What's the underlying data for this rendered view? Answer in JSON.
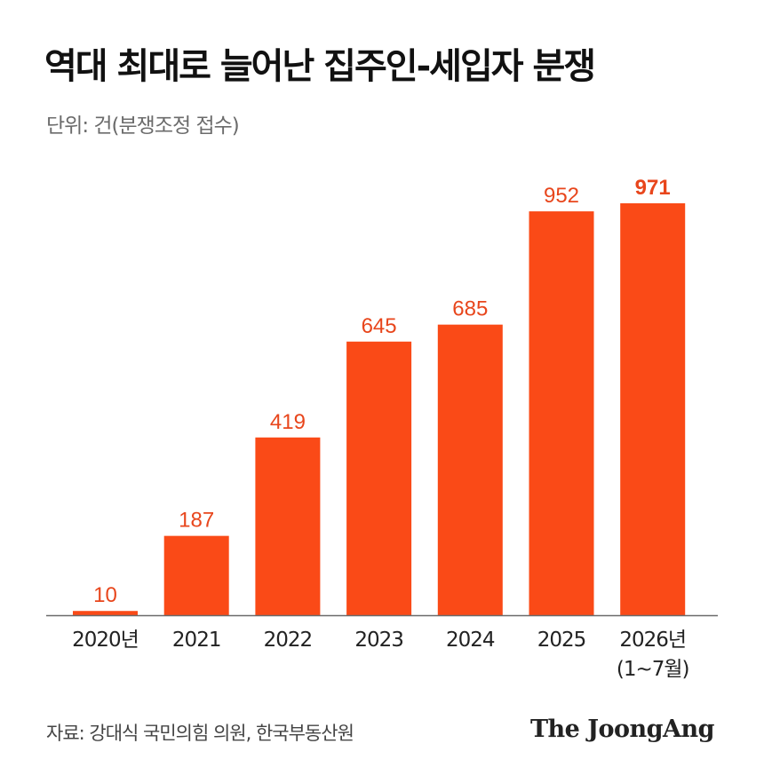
{
  "title": "역대 최대로 늘어난 집주인-세입자 분쟁",
  "unit_label": "단위: 건(분쟁조정 접수)",
  "source": "자료: 강대식 국민의힘 의원, 한국부동산원",
  "brand": "The JoongAng",
  "colors": {
    "bar": "#FA4A17",
    "label": "#E8461C",
    "axis": "#6a6a6a",
    "text": "#222222"
  },
  "chart_data": {
    "type": "bar",
    "categories": [
      "2020년",
      "2021",
      "2022",
      "2023",
      "2024",
      "2025",
      "2026년\n(1~7월)"
    ],
    "values": [
      10,
      187,
      419,
      645,
      685,
      952,
      971
    ],
    "title": "역대 최대로 늘어난 집주인-세입자 분쟁",
    "xlabel": "",
    "ylabel": "단위: 건(분쟁조정 접수)",
    "ylim": [
      0,
      971
    ],
    "grid": false,
    "highlight_index": 6
  }
}
